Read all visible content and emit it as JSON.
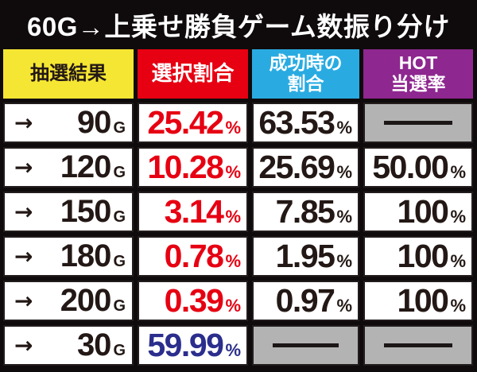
{
  "title": "60G→上乗せ勝負ゲーム数振り分け",
  "units": {
    "percent": "%",
    "games": "G",
    "arrow": "→"
  },
  "headers": {
    "result": "抽選結果",
    "select": "選択割合",
    "success_line1": "成功時の",
    "success_line2": "割合",
    "hot_line1": "HOT",
    "hot_line2": "当選率"
  },
  "rows": [
    {
      "games": "90",
      "select": "25.42",
      "select_color": "#e60012",
      "success": "63.53",
      "hot": null
    },
    {
      "games": "120",
      "select": "10.28",
      "select_color": "#e60012",
      "success": "25.69",
      "hot": "50.00"
    },
    {
      "games": "150",
      "select": "3.14",
      "select_color": "#e60012",
      "success": "7.85",
      "hot": "100"
    },
    {
      "games": "180",
      "select": "0.78",
      "select_color": "#e60012",
      "success": "1.95",
      "hot": "100"
    },
    {
      "games": "200",
      "select": "0.39",
      "select_color": "#e60012",
      "success": "0.97",
      "hot": "100"
    },
    {
      "games": "30",
      "select": "59.99",
      "select_color": "#2b2e8c",
      "success": null,
      "hot": null
    }
  ],
  "colors": {
    "background": "#0f0b0c",
    "title_text": "#ffffff",
    "header_result_bg": "#f5e633",
    "header_select_bg": "#e60012",
    "header_success_bg": "#29abe2",
    "header_hot_bg": "#8e278f",
    "cell_bg": "#ffffff",
    "cell_border": "#221c1c",
    "empty_cell_bg": "#b3b3b3",
    "value_red": "#e60012",
    "value_blue": "#2b2e8c",
    "text_black": "#231815"
  },
  "chart_data": {
    "type": "table",
    "title": "60G→上乗せ勝負ゲーム数振り分け",
    "columns": [
      "抽選結果",
      "選択割合",
      "成功時の割合",
      "HOT当選率"
    ],
    "rows": [
      [
        "→90G",
        "25.42%",
        "63.53%",
        "—"
      ],
      [
        "→120G",
        "10.28%",
        "25.69%",
        "50.00%"
      ],
      [
        "→150G",
        "3.14%",
        "7.85%",
        "100%"
      ],
      [
        "→180G",
        "0.78%",
        "1.95%",
        "100%"
      ],
      [
        "→200G",
        "0.39%",
        "0.97%",
        "100%"
      ],
      [
        "→30G",
        "59.99%",
        "—",
        "—"
      ]
    ]
  }
}
